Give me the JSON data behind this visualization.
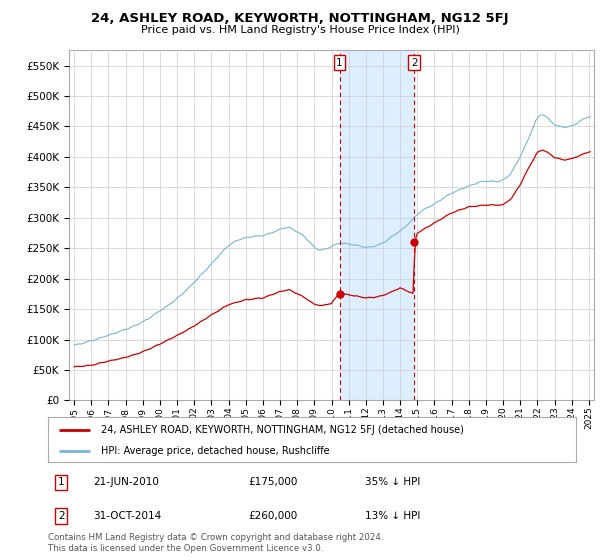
{
  "title": "24, ASHLEY ROAD, KEYWORTH, NOTTINGHAM, NG12 5FJ",
  "subtitle": "Price paid vs. HM Land Registry's House Price Index (HPI)",
  "hpi_color": "#7ab4d8",
  "price_color": "#cc0000",
  "fill_color": "#ddeeff",
  "background_color": "#ffffff",
  "grid_color": "#cccccc",
  "sale1_x": 2010.47,
  "sale1_y": 175000,
  "sale1_date": "21-JUN-2010",
  "sale1_price": 175000,
  "sale1_label": "35% ↓ HPI",
  "sale2_x": 2014.83,
  "sale2_y": 260000,
  "sale2_date": "31-OCT-2014",
  "sale2_price": 260000,
  "sale2_label": "13% ↓ HPI",
  "footer": "Contains HM Land Registry data © Crown copyright and database right 2024.\nThis data is licensed under the Open Government Licence v3.0.",
  "legend_line1": "24, ASHLEY ROAD, KEYWORTH, NOTTINGHAM, NG12 5FJ (detached house)",
  "legend_line2": "HPI: Average price, detached house, Rushcliffe",
  "ylim": [
    0,
    575000
  ],
  "yticks": [
    0,
    50000,
    100000,
    150000,
    200000,
    250000,
    300000,
    350000,
    400000,
    450000,
    500000,
    550000
  ],
  "xlim_left": 1994.7,
  "xlim_right": 2025.3
}
